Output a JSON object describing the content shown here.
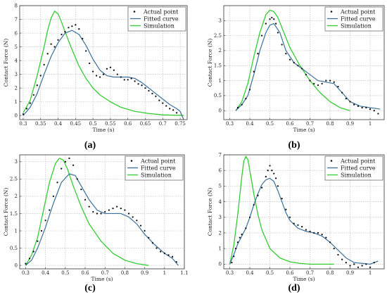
{
  "colors": {
    "actual": "#111111",
    "fitted": "#3a6f9a",
    "simulation": "#33cc33",
    "grid": "#b8b8b8",
    "axis": "#333333"
  },
  "legend": {
    "actual": "Actual point",
    "fitted": "Fitted curve",
    "simulation": "Simulation",
    "placement": "top-right"
  },
  "chart_data": [
    {
      "type": "line",
      "panel_label": "(a)",
      "xlabel": "Time (s)",
      "ylabel": "Contact Force (N)",
      "xlim": [
        0.29,
        0.77
      ],
      "ylim": [
        -0.3,
        8
      ],
      "xticks": [
        0.3,
        0.35,
        0.4,
        0.45,
        0.5,
        0.55,
        0.6,
        0.65,
        0.7,
        0.75
      ],
      "yticks": [
        0,
        1,
        2,
        3,
        4,
        5,
        6,
        7,
        8
      ],
      "grid": true,
      "series": [
        {
          "name": "Simulation",
          "x": [
            0.3,
            0.32,
            0.34,
            0.36,
            0.37,
            0.38,
            0.39,
            0.4,
            0.41,
            0.42,
            0.44,
            0.46,
            0.48,
            0.5,
            0.52,
            0.55,
            0.58,
            0.62,
            0.66,
            0.7,
            0.74,
            0.76
          ],
          "y": [
            0.2,
            1.1,
            2.9,
            5.0,
            6.2,
            7.1,
            7.6,
            7.4,
            6.8,
            6.1,
            4.8,
            3.6,
            2.7,
            2.0,
            1.5,
            1.0,
            0.6,
            0.3,
            0.15,
            0.05,
            0.02,
            0.01
          ]
        },
        {
          "name": "Fitted curve",
          "x": [
            0.3,
            0.32,
            0.34,
            0.36,
            0.38,
            0.4,
            0.42,
            0.44,
            0.46,
            0.48,
            0.5,
            0.52,
            0.54,
            0.56,
            0.58,
            0.6,
            0.62,
            0.64,
            0.66,
            0.68,
            0.7,
            0.72,
            0.74,
            0.75,
            0.76
          ],
          "y": [
            0.0,
            0.6,
            1.6,
            3.0,
            4.3,
            5.3,
            6.0,
            6.2,
            5.9,
            5.1,
            4.1,
            3.3,
            2.9,
            2.8,
            2.8,
            2.8,
            2.7,
            2.4,
            2.0,
            1.6,
            1.2,
            0.8,
            0.5,
            0.3,
            -0.3
          ]
        },
        {
          "name": "Actual point",
          "x": [
            0.3,
            0.31,
            0.32,
            0.33,
            0.34,
            0.35,
            0.36,
            0.37,
            0.38,
            0.39,
            0.4,
            0.41,
            0.42,
            0.43,
            0.44,
            0.45,
            0.46,
            0.47,
            0.48,
            0.49,
            0.5,
            0.51,
            0.52,
            0.53,
            0.54,
            0.55,
            0.56,
            0.57,
            0.58,
            0.59,
            0.6,
            0.61,
            0.62,
            0.63,
            0.64,
            0.65,
            0.66,
            0.67,
            0.68,
            0.69,
            0.7,
            0.71,
            0.72,
            0.73,
            0.74
          ],
          "y": [
            0.1,
            0.5,
            0.9,
            1.5,
            2.2,
            2.9,
            3.7,
            4.5,
            5.2,
            5.0,
            5.5,
            5.9,
            6.1,
            6.4,
            6.5,
            6.6,
            6.3,
            5.6,
            4.7,
            3.8,
            3.2,
            2.9,
            2.8,
            3.0,
            3.4,
            3.5,
            3.3,
            3.0,
            2.8,
            2.6,
            2.6,
            2.7,
            2.5,
            2.3,
            2.2,
            2.0,
            1.8,
            1.6,
            1.4,
            1.1,
            0.9,
            0.7,
            0.5,
            0.4,
            0.2
          ]
        }
      ]
    },
    {
      "type": "line",
      "panel_label": "(b)",
      "xlabel": "Time (s)",
      "ylabel": "Contact Force (N)",
      "xlim": [
        0.27,
        1.07
      ],
      "ylim": [
        -0.3,
        3.5
      ],
      "xticks": [
        0.3,
        0.4,
        0.5,
        0.6,
        0.7,
        0.8,
        0.9,
        1
      ],
      "yticks": [
        0,
        0.5,
        1,
        1.5,
        2,
        2.5,
        3
      ],
      "grid": true,
      "series": [
        {
          "name": "Simulation",
          "x": [
            0.33,
            0.36,
            0.39,
            0.42,
            0.45,
            0.48,
            0.5,
            0.52,
            0.54,
            0.57,
            0.6,
            0.65,
            0.7,
            0.75,
            0.8,
            0.85,
            0.9
          ],
          "y": [
            0.0,
            0.3,
            0.9,
            1.8,
            2.6,
            3.2,
            3.35,
            3.3,
            3.1,
            2.6,
            2.1,
            1.5,
            1.0,
            0.6,
            0.3,
            0.1,
            0.0
          ]
        },
        {
          "name": "Fitted curve",
          "x": [
            0.33,
            0.36,
            0.39,
            0.42,
            0.45,
            0.48,
            0.5,
            0.52,
            0.55,
            0.58,
            0.62,
            0.66,
            0.7,
            0.74,
            0.78,
            0.82,
            0.86,
            0.9,
            0.95,
            1.0,
            1.05
          ],
          "y": [
            0.0,
            0.2,
            0.5,
            1.2,
            2.0,
            2.6,
            2.85,
            2.9,
            2.6,
            2.0,
            1.6,
            1.4,
            1.2,
            1.0,
            0.95,
            0.9,
            0.6,
            0.3,
            0.15,
            0.1,
            0.05
          ]
        },
        {
          "name": "Actual point",
          "x": [
            0.34,
            0.36,
            0.38,
            0.4,
            0.42,
            0.44,
            0.46,
            0.48,
            0.5,
            0.51,
            0.52,
            0.53,
            0.54,
            0.56,
            0.58,
            0.6,
            0.62,
            0.64,
            0.66,
            0.68,
            0.7,
            0.72,
            0.74,
            0.76,
            0.78,
            0.8,
            0.82,
            0.84,
            0.86,
            0.88,
            0.9,
            0.92,
            0.94,
            0.96,
            0.98,
            1.0,
            1.02,
            1.04
          ],
          "y": [
            0.1,
            0.2,
            0.4,
            0.7,
            1.3,
            1.9,
            2.5,
            2.9,
            3.05,
            3.1,
            3.05,
            2.9,
            2.6,
            2.2,
            1.9,
            1.7,
            1.6,
            1.5,
            1.4,
            1.2,
            1.0,
            0.9,
            0.85,
            0.9,
            1.0,
            1.0,
            0.95,
            0.8,
            0.6,
            0.4,
            0.3,
            0.2,
            0.15,
            0.1,
            0.1,
            0.05,
            0.0,
            -0.1
          ]
        }
      ]
    },
    {
      "type": "line",
      "panel_label": "(c)",
      "xlabel": "Time (s)",
      "ylabel": "Contact Force (N)",
      "xlim": [
        0.27,
        1.1
      ],
      "ylim": [
        -0.1,
        3.2
      ],
      "xticks": [
        0.3,
        0.4,
        0.5,
        0.6,
        0.7,
        0.8,
        0.9,
        1,
        1.1
      ],
      "yticks": [
        0,
        0.5,
        1,
        1.5,
        2,
        2.5,
        3
      ],
      "grid": true,
      "series": [
        {
          "name": "Simulation",
          "x": [
            0.3,
            0.33,
            0.36,
            0.39,
            0.42,
            0.45,
            0.47,
            0.49,
            0.51,
            0.54,
            0.58,
            0.62,
            0.68,
            0.74,
            0.8,
            0.86,
            0.92
          ],
          "y": [
            0.0,
            0.3,
            0.8,
            1.6,
            2.4,
            2.95,
            3.1,
            3.05,
            2.8,
            2.3,
            1.7,
            1.2,
            0.7,
            0.35,
            0.15,
            0.05,
            0.0
          ]
        },
        {
          "name": "Fitted curve",
          "x": [
            0.3,
            0.33,
            0.36,
            0.4,
            0.44,
            0.48,
            0.52,
            0.55,
            0.58,
            0.62,
            0.66,
            0.7,
            0.74,
            0.78,
            0.82,
            0.86,
            0.9,
            0.95,
            1.0,
            1.04,
            1.07
          ],
          "y": [
            0.0,
            0.15,
            0.5,
            1.1,
            1.8,
            2.4,
            2.65,
            2.6,
            2.3,
            1.9,
            1.6,
            1.5,
            1.5,
            1.5,
            1.4,
            1.2,
            0.9,
            0.6,
            0.35,
            0.2,
            0.0
          ]
        },
        {
          "name": "Actual point",
          "x": [
            0.3,
            0.32,
            0.34,
            0.36,
            0.38,
            0.4,
            0.42,
            0.44,
            0.46,
            0.48,
            0.5,
            0.52,
            0.54,
            0.56,
            0.58,
            0.6,
            0.62,
            0.64,
            0.66,
            0.68,
            0.7,
            0.72,
            0.74,
            0.76,
            0.78,
            0.8,
            0.82,
            0.84,
            0.86,
            0.88,
            0.9,
            0.92,
            0.94,
            0.96,
            0.98,
            1.0,
            1.02,
            1.04,
            1.06
          ],
          "y": [
            0.05,
            0.2,
            0.4,
            0.7,
            1.0,
            1.3,
            1.6,
            2.0,
            2.4,
            2.8,
            3.0,
            3.1,
            2.9,
            2.5,
            2.2,
            1.9,
            1.7,
            1.55,
            1.5,
            1.5,
            1.55,
            1.6,
            1.65,
            1.7,
            1.65,
            1.6,
            1.5,
            1.4,
            1.3,
            1.15,
            1.0,
            0.8,
            0.65,
            0.5,
            0.4,
            0.35,
            0.3,
            0.25,
            0.1
          ]
        }
      ]
    },
    {
      "type": "line",
      "panel_label": "(d)",
      "xlabel": "Time (s)",
      "ylabel": "Contact Force (N)",
      "xlim": [
        0.27,
        1.07
      ],
      "ylim": [
        -0.3,
        7
      ],
      "xticks": [
        0.3,
        0.4,
        0.5,
        0.6,
        0.7,
        0.8,
        0.9,
        1
      ],
      "yticks": [
        0,
        1,
        2,
        3,
        4,
        5,
        6,
        7
      ],
      "grid": true,
      "series": [
        {
          "name": "Simulation",
          "x": [
            0.3,
            0.32,
            0.34,
            0.36,
            0.37,
            0.38,
            0.39,
            0.4,
            0.42,
            0.44,
            0.46,
            0.5,
            0.55,
            0.6,
            0.65,
            0.7,
            0.75,
            0.8,
            0.82
          ],
          "y": [
            0.0,
            1.2,
            3.2,
            5.6,
            6.6,
            6.9,
            6.7,
            6.0,
            4.5,
            3.2,
            2.2,
            1.0,
            0.4,
            0.15,
            0.05,
            0.0,
            0.0,
            0.0,
            0.0
          ]
        },
        {
          "name": "Fitted curve",
          "x": [
            0.3,
            0.32,
            0.34,
            0.36,
            0.38,
            0.4,
            0.42,
            0.44,
            0.46,
            0.48,
            0.5,
            0.52,
            0.54,
            0.56,
            0.58,
            0.6,
            0.64,
            0.68,
            0.72,
            0.76,
            0.8,
            0.84,
            0.88,
            0.92,
            0.96,
            1.0,
            1.04
          ],
          "y": [
            0.0,
            0.6,
            1.3,
            1.8,
            2.3,
            3.0,
            3.8,
            4.5,
            5.1,
            5.4,
            5.5,
            5.3,
            4.7,
            4.0,
            3.3,
            2.8,
            2.3,
            2.1,
            2.0,
            1.8,
            1.4,
            0.9,
            0.4,
            0.1,
            0.05,
            0.0,
            0.2
          ]
        },
        {
          "name": "Actual point",
          "x": [
            0.31,
            0.32,
            0.33,
            0.34,
            0.35,
            0.36,
            0.38,
            0.4,
            0.42,
            0.44,
            0.46,
            0.48,
            0.49,
            0.5,
            0.51,
            0.52,
            0.53,
            0.54,
            0.56,
            0.58,
            0.6,
            0.62,
            0.64,
            0.66,
            0.68,
            0.7,
            0.72,
            0.74,
            0.76,
            0.78,
            0.8,
            0.82,
            0.84,
            0.86,
            0.88,
            0.9,
            0.92,
            0.94,
            0.96,
            0.98,
            1.0,
            1.02
          ],
          "y": [
            0.1,
            0.5,
            1.0,
            1.4,
            1.7,
            1.9,
            2.3,
            3.0,
            3.8,
            4.4,
            4.9,
            5.6,
            6.0,
            6.3,
            6.0,
            5.8,
            5.5,
            5.0,
            4.2,
            3.5,
            3.0,
            2.6,
            2.5,
            2.4,
            2.2,
            2.1,
            2.0,
            2.0,
            1.9,
            1.7,
            1.4,
            1.0,
            0.6,
            0.3,
            0.1,
            -0.1,
            0.0,
            -0.2,
            -0.1,
            0.0,
            -0.2,
            0.1
          ]
        }
      ]
    }
  ]
}
